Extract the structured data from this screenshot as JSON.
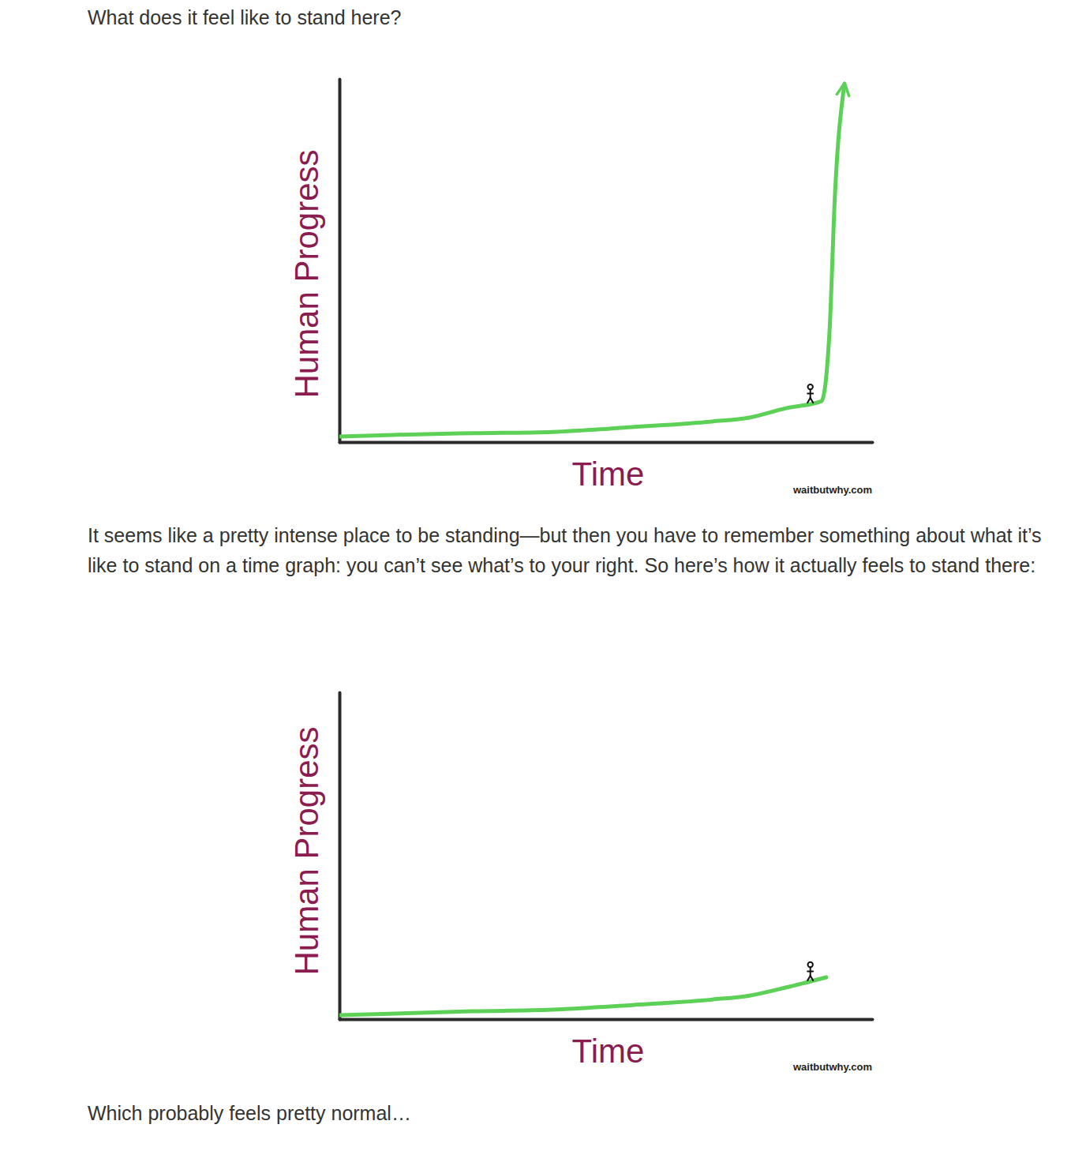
{
  "text": {
    "intro": "What does it feel like to stand here?",
    "middle": "It seems like a pretty intense place to be standing—but then you have to remember something about what it’s like to stand on a time graph: you can’t see what’s to your right. So here’s how it actually feels to stand there:",
    "outro": "Which probably feels pretty normal…"
  },
  "chart_data": [
    {
      "type": "line",
      "xlabel": "Time",
      "ylabel": "Human Progress",
      "source": "waitbutwhy.com",
      "x": [
        0,
        10,
        25,
        40,
        55,
        70,
        77,
        84,
        90.5,
        92,
        93,
        94.8
      ],
      "values": [
        1.7,
        2.2,
        2.7,
        3.1,
        4.6,
        6.3,
        7.5,
        10.4,
        12.5,
        33.7,
        74.7,
        109.5
      ],
      "color": "#5dd157",
      "marker": "arrow",
      "xlim": [
        0,
        100
      ],
      "ylim": [
        0,
        111
      ],
      "grid": false,
      "tick_labels": false,
      "annotations": [
        {
          "x": 88.4,
          "y": 11.8,
          "marker": "stick_figure"
        }
      ]
    },
    {
      "type": "line",
      "xlabel": "Time",
      "ylabel": "Human Progress",
      "source": "waitbutwhy.com",
      "x": [
        0,
        25,
        40,
        55,
        70,
        77,
        84.4,
        91.4
      ],
      "values": [
        1.2,
        2.4,
        2.9,
        4.3,
        6.0,
        7.2,
        9.9,
        12.8
      ],
      "color": "#5dd157",
      "xlim": [
        0,
        100
      ],
      "ylim": [
        0,
        100
      ],
      "grid": false,
      "tick_labels": false,
      "annotations": [
        {
          "x": 88.4,
          "y": 11.6,
          "marker": "stick_figure"
        }
      ]
    }
  ]
}
